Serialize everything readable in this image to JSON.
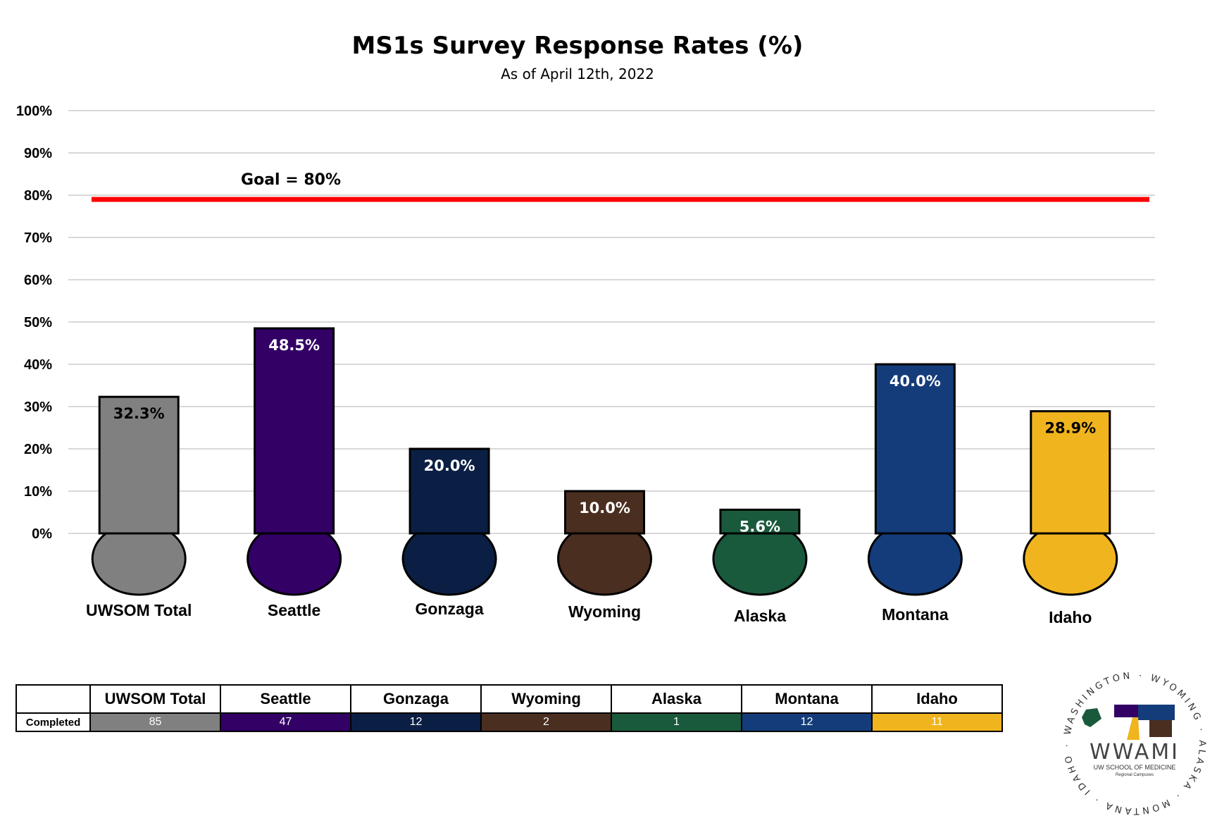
{
  "chart_data": {
    "type": "bar",
    "title": "MS1s Survey Response Rates (%)",
    "subtitle": "As of April 12th, 2022",
    "categories": [
      "UWSOM Total",
      "Seattle",
      "Gonzaga",
      "Wyoming",
      "Alaska",
      "Montana",
      "Idaho"
    ],
    "values": [
      32.3,
      48.5,
      20.0,
      10.0,
      5.6,
      40.0,
      28.9
    ],
    "value_labels": [
      "32.3%",
      "48.5%",
      "20.0%",
      "10.0%",
      "5.6%",
      "40.0%",
      "28.9%"
    ],
    "colors": [
      "#808080",
      "#330066",
      "#0b1f44",
      "#4a2e20",
      "#1a5a3c",
      "#143c7a",
      "#f0b41e"
    ],
    "label_colors": [
      "#000000",
      "#ffffff",
      "#ffffff",
      "#ffffff",
      "#ffffff",
      "#ffffff",
      "#000000"
    ],
    "ylim": [
      0,
      100
    ],
    "yticks": [
      "0%",
      "10%",
      "20%",
      "30%",
      "40%",
      "50%",
      "60%",
      "70%",
      "80%",
      "90%",
      "100%"
    ],
    "grid": true,
    "goal": {
      "value": 80,
      "label": "Goal = 80%",
      "color": "#ff0000"
    }
  },
  "table": {
    "headers": [
      "UWSOM Total",
      "Seattle",
      "Gonzaga",
      "Wyoming",
      "Alaska",
      "Montana",
      "Idaho"
    ],
    "row_label": "Completed",
    "values": [
      "85",
      "47",
      "12",
      "2",
      "1",
      "12",
      "11"
    ]
  },
  "logo": {
    "name": "WWAMI",
    "line1": "UW SCHOOL OF MEDICINE",
    "line2": "Regional Campuses",
    "ring_text": "WASHINGTON · WYOMING · ALASKA · MONTANA · IDAHO ·"
  }
}
